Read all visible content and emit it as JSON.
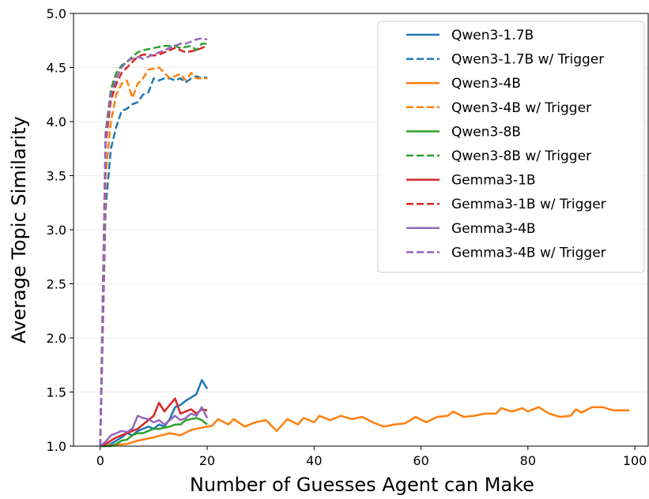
{
  "chart_data": {
    "type": "line",
    "xlabel": "Number of Guesses Agent can Make",
    "ylabel": "Average Topic Similarity",
    "xlim": [
      -5,
      102.5
    ],
    "ylim": [
      1,
      5
    ],
    "xticks": [
      0,
      20,
      40,
      60,
      80,
      100
    ],
    "yticks": [
      {
        "value": 1,
        "label": "1.0"
      },
      1.5,
      {
        "value": 2,
        "label": "2.0"
      },
      2.5,
      {
        "value": 3,
        "label": "3.0"
      },
      3.5,
      {
        "value": 4,
        "label": "4.0"
      },
      4.5,
      {
        "value": 5,
        "label": "5.0"
      }
    ],
    "grid": true,
    "legend": "upper right",
    "series": [
      {
        "name": "Qwen3-1.7B",
        "color": "#1f77b4",
        "linestyle": "solid",
        "x": [
          0,
          1,
          2,
          3,
          4,
          5,
          6,
          7,
          8,
          9,
          10,
          11,
          12,
          13,
          14,
          15,
          16,
          17,
          18,
          19,
          20
        ],
        "values": [
          1.0,
          1.0,
          1.02,
          1.05,
          1.08,
          1.12,
          1.1,
          1.14,
          1.16,
          1.18,
          1.16,
          1.2,
          1.18,
          1.25,
          1.36,
          1.38,
          1.42,
          1.45,
          1.48,
          1.61,
          1.53
        ]
      },
      {
        "name": "Qwen3-1.7B w/ Trigger",
        "color": "#1f77b4",
        "linestyle": "dashed",
        "x": [
          0,
          1,
          2,
          3,
          4,
          5,
          6,
          7,
          8,
          9,
          10,
          11,
          12,
          13,
          14,
          15,
          16,
          17,
          18,
          19,
          20
        ],
        "values": [
          1.0,
          3.2,
          3.75,
          3.95,
          4.1,
          4.12,
          4.16,
          4.18,
          4.25,
          4.27,
          4.4,
          4.38,
          4.4,
          4.4,
          4.38,
          4.4,
          4.36,
          4.4,
          4.42,
          4.4,
          4.41
        ]
      },
      {
        "name": "Qwen3-4B",
        "color": "#ff7f0e",
        "linestyle": "solid",
        "x": [
          0,
          5,
          7,
          10,
          13,
          15,
          17,
          19,
          21,
          22,
          24,
          25,
          27,
          29,
          31,
          33,
          35,
          37,
          38,
          40,
          41,
          43,
          45,
          47,
          49,
          51,
          53,
          55,
          57,
          59,
          61,
          63,
          65,
          66,
          68,
          70,
          72,
          74,
          75,
          77,
          79,
          80,
          82,
          84,
          86,
          88,
          89,
          90,
          92,
          94,
          96,
          99
        ],
        "values": [
          1.0,
          1.02,
          1.05,
          1.08,
          1.12,
          1.1,
          1.15,
          1.17,
          1.19,
          1.25,
          1.2,
          1.25,
          1.18,
          1.22,
          1.24,
          1.14,
          1.25,
          1.2,
          1.26,
          1.22,
          1.28,
          1.24,
          1.28,
          1.25,
          1.27,
          1.22,
          1.18,
          1.2,
          1.21,
          1.27,
          1.22,
          1.27,
          1.28,
          1.32,
          1.27,
          1.28,
          1.3,
          1.3,
          1.35,
          1.32,
          1.35,
          1.32,
          1.36,
          1.3,
          1.27,
          1.28,
          1.34,
          1.31,
          1.36,
          1.36,
          1.33,
          1.33
        ]
      },
      {
        "name": "Qwen3-4B w/ Trigger",
        "color": "#ff7f0e",
        "linestyle": "dashed",
        "x": [
          0,
          1,
          2,
          3,
          4,
          5,
          6,
          7,
          8,
          9,
          10,
          11,
          12,
          13,
          14,
          15,
          16,
          17,
          18,
          19,
          20
        ],
        "values": [
          1.0,
          3.5,
          4.0,
          4.25,
          4.35,
          4.38,
          4.22,
          4.35,
          4.4,
          4.48,
          4.49,
          4.5,
          4.45,
          4.4,
          4.42,
          4.44,
          4.38,
          4.45,
          4.4,
          4.4,
          4.4
        ]
      },
      {
        "name": "Qwen3-8B",
        "color": "#2ca02c",
        "linestyle": "solid",
        "x": [
          0,
          1,
          2,
          3,
          4,
          5,
          6,
          7,
          8,
          9,
          10,
          11,
          12,
          13,
          14,
          15,
          16,
          17,
          18,
          19,
          20
        ],
        "values": [
          1.0,
          1.0,
          1.0,
          1.02,
          1.05,
          1.06,
          1.1,
          1.12,
          1.12,
          1.14,
          1.16,
          1.16,
          1.17,
          1.18,
          1.2,
          1.2,
          1.24,
          1.25,
          1.26,
          1.24,
          1.2
        ]
      },
      {
        "name": "Qwen3-8B w/ Trigger",
        "color": "#2ca02c",
        "linestyle": "dashed",
        "x": [
          0,
          1,
          2,
          3,
          4,
          5,
          6,
          7,
          8,
          9,
          10,
          11,
          12,
          13,
          14,
          15,
          16,
          17,
          18,
          19,
          20
        ],
        "values": [
          1.0,
          3.9,
          4.3,
          4.45,
          4.52,
          4.55,
          4.6,
          4.64,
          4.66,
          4.67,
          4.68,
          4.69,
          4.7,
          4.7,
          4.7,
          4.68,
          4.69,
          4.7,
          4.66,
          4.72,
          4.72
        ]
      },
      {
        "name": "Gemma3-1B",
        "color": "#d62728",
        "linestyle": "solid",
        "x": [
          0,
          1,
          2,
          3,
          4,
          5,
          6,
          7,
          8,
          9,
          10,
          11,
          12,
          13,
          14,
          15,
          16,
          17,
          18,
          19,
          20
        ],
        "values": [
          1.0,
          1.02,
          1.05,
          1.08,
          1.1,
          1.12,
          1.14,
          1.16,
          1.2,
          1.24,
          1.28,
          1.4,
          1.32,
          1.38,
          1.44,
          1.3,
          1.32,
          1.34,
          1.3,
          1.34,
          1.33
        ]
      },
      {
        "name": "Gemma3-1B w/ Trigger",
        "color": "#d62728",
        "linestyle": "dashed",
        "x": [
          0,
          1,
          2,
          3,
          4,
          5,
          6,
          7,
          8,
          9,
          10,
          11,
          12,
          13,
          14,
          15,
          16,
          17,
          18,
          19,
          20
        ],
        "values": [
          1.0,
          3.8,
          4.2,
          4.35,
          4.45,
          4.5,
          4.55,
          4.6,
          4.62,
          4.62,
          4.61,
          4.62,
          4.64,
          4.66,
          4.68,
          4.66,
          4.64,
          4.65,
          4.66,
          4.68,
          4.7
        ]
      },
      {
        "name": "Gemma3-4B",
        "color": "#9467bd",
        "linestyle": "solid",
        "x": [
          0,
          1,
          2,
          3,
          4,
          5,
          6,
          7,
          8,
          9,
          10,
          11,
          12,
          13,
          14,
          15,
          16,
          17,
          18,
          19,
          20
        ],
        "values": [
          1.0,
          1.04,
          1.1,
          1.12,
          1.14,
          1.13,
          1.16,
          1.28,
          1.26,
          1.25,
          1.22,
          1.24,
          1.2,
          1.24,
          1.28,
          1.24,
          1.26,
          1.3,
          1.28,
          1.36,
          1.26
        ]
      },
      {
        "name": "Gemma3-4B w/ Trigger",
        "color": "#9467bd",
        "linestyle": "dashed",
        "x": [
          0,
          1,
          2,
          3,
          4,
          5,
          6,
          7,
          8,
          9,
          10,
          11,
          12,
          13,
          14,
          15,
          16,
          17,
          18,
          19,
          20
        ],
        "values": [
          1.0,
          3.9,
          4.25,
          4.4,
          4.5,
          4.56,
          4.58,
          4.6,
          4.58,
          4.6,
          4.62,
          4.64,
          4.66,
          4.68,
          4.7,
          4.72,
          4.72,
          4.74,
          4.76,
          4.77,
          4.76
        ]
      }
    ]
  }
}
